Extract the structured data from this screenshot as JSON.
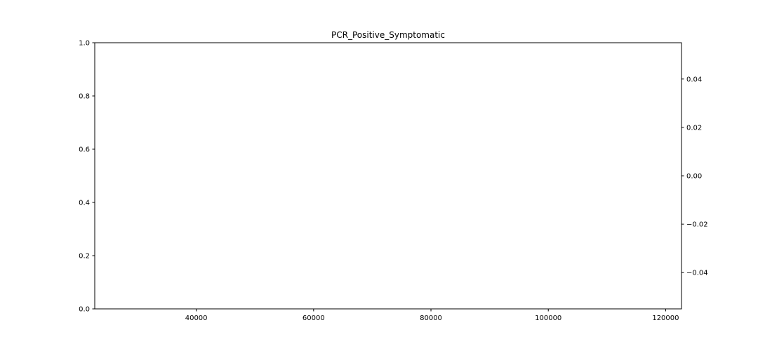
{
  "chart_data": {
    "type": "line",
    "title": "PCR_Positive_Symptomatic",
    "xlabel": "",
    "ylabel": "",
    "x_ticks": [
      "40000",
      "60000",
      "80000",
      "100000",
      "120000"
    ],
    "x_tick_values": [
      40000,
      60000,
      80000,
      100000,
      120000
    ],
    "xlim": [
      22700,
      122700
    ],
    "y_ticks": [
      "0.0",
      "0.2",
      "0.4",
      "0.6",
      "0.8",
      "1.0"
    ],
    "y_tick_values": [
      0,
      0.2,
      0.4,
      0.6,
      0.8,
      1.0
    ],
    "ylim": [
      0,
      1
    ],
    "y2_ticks": [
      "0.04",
      "0.02",
      "0.00",
      "−0.02",
      "−0.04"
    ],
    "y2_tick_values": [
      0.04,
      0.02,
      0,
      -0.02,
      -0.04
    ],
    "y2lim": [
      -0.055,
      0.055
    ],
    "series": [],
    "grid": false
  }
}
